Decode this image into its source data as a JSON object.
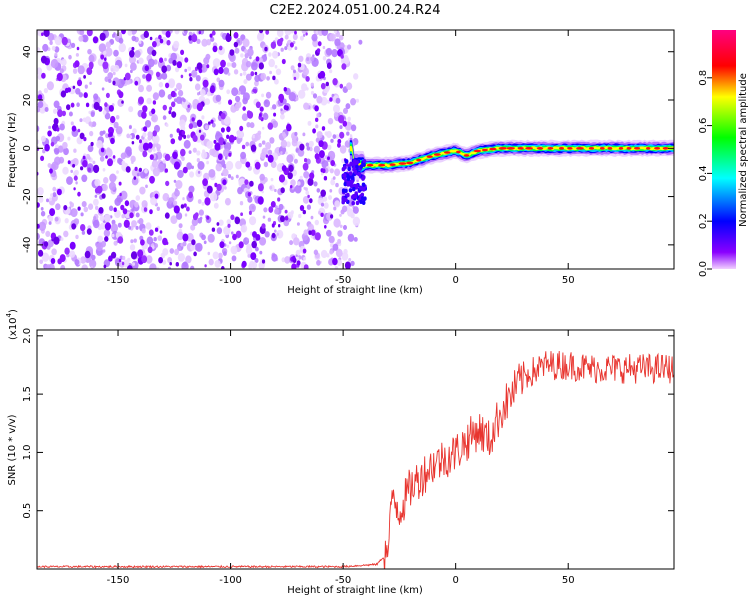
{
  "title": "C2E2.2024.051.00.24.R24",
  "colors": {
    "snr_line": "#e8342e",
    "frame": "#000000",
    "signal_dots": "#7a00ff"
  },
  "chart_data": [
    {
      "type": "heatmap",
      "xlabel": "Height of straight line (km)",
      "ylabel": "Frequency (Hz)",
      "xlim": [
        -186,
        97
      ],
      "ylim": [
        -50,
        49
      ],
      "x_ticks": [
        -150,
        -100,
        -50,
        0,
        50
      ],
      "y_ticks": [
        -40,
        -20,
        0,
        20,
        40
      ],
      "colorbar": {
        "label": "Normalized spectral amplitude",
        "range": [
          0,
          1
        ],
        "ticks": [
          "0.0",
          "0.2",
          "0.4",
          "0.6",
          "0.8"
        ],
        "colormap": [
          "#e500ff",
          "#5a00ff",
          "#0000ff",
          "#00ffff",
          "#00ff00",
          "#ffff00",
          "#ff0000",
          "#ff0080"
        ]
      },
      "noise_region_km": [
        -186,
        -45
      ],
      "ridge": [
        {
          "x": -45,
          "y": -7
        },
        {
          "x": -30,
          "y": -7
        },
        {
          "x": -20,
          "y": -6
        },
        {
          "x": -10,
          "y": -3
        },
        {
          "x": 0,
          "y": -1
        },
        {
          "x": 5,
          "y": -3
        },
        {
          "x": 10,
          "y": -1
        },
        {
          "x": 20,
          "y": 0
        },
        {
          "x": 40,
          "y": 0
        },
        {
          "x": 60,
          "y": 0
        },
        {
          "x": 80,
          "y": 0
        },
        {
          "x": 97,
          "y": 0
        }
      ]
    },
    {
      "type": "line",
      "xlabel": "Height of straight line (km)",
      "ylabel": "SNR (10 * v/v)",
      "y_multiplier": "(x10",
      "y_multiplier_exp": "4",
      "y_multiplier_close": ")",
      "xlim": [
        -186,
        97
      ],
      "ylim": [
        0,
        2.05
      ],
      "x_ticks": [
        -150,
        -100,
        -50,
        0,
        50
      ],
      "y_ticks": [
        "0.5",
        "1.0",
        "1.5",
        "2.0"
      ],
      "series": [
        {
          "x": [
            -186,
            -100,
            -50,
            -35,
            -30,
            -28,
            -25,
            -20,
            -15,
            -10,
            -5,
            0,
            5,
            10,
            15,
            20,
            25,
            30,
            40,
            50,
            60,
            70,
            80,
            90,
            97
          ],
          "values": [
            0.02,
            0.02,
            0.02,
            0.04,
            0.15,
            0.65,
            0.5,
            0.7,
            0.8,
            0.9,
            0.95,
            1.0,
            1.1,
            1.2,
            1.1,
            1.35,
            1.5,
            1.65,
            1.75,
            1.75,
            1.72,
            1.72,
            1.72,
            1.72,
            1.72
          ]
        }
      ]
    }
  ]
}
